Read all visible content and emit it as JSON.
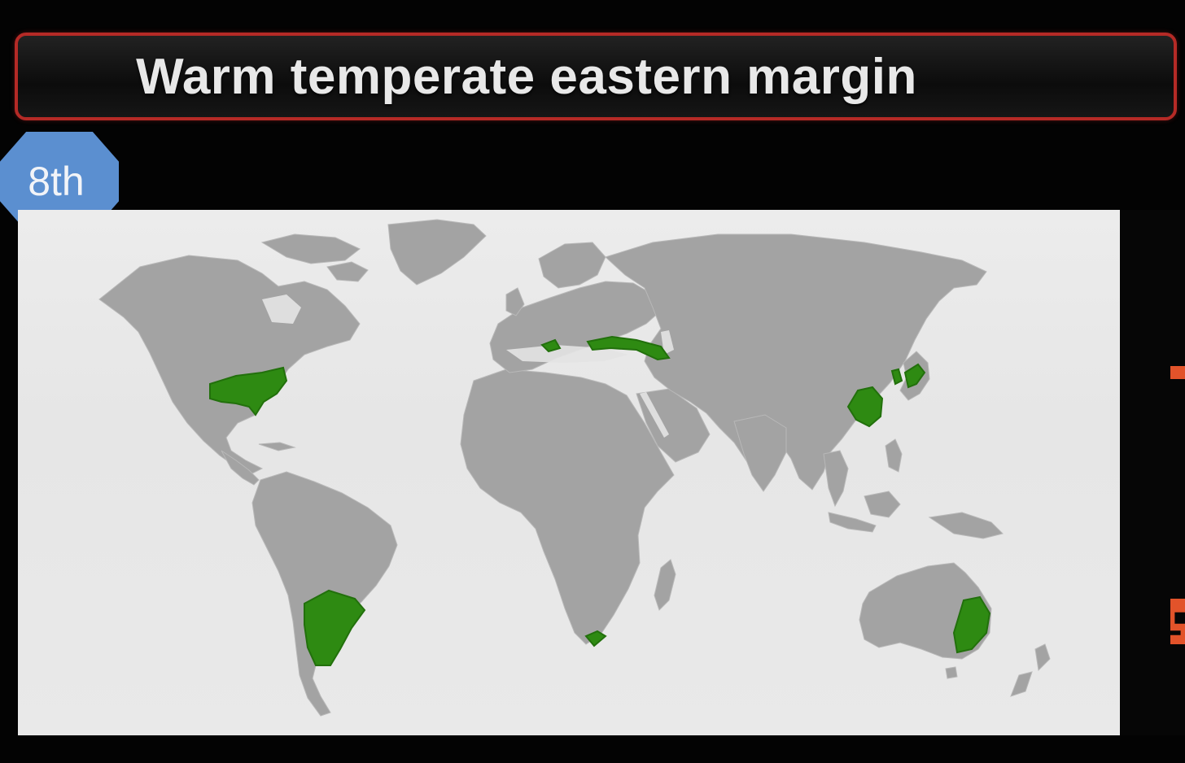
{
  "title": "Warm temperate eastern margin",
  "badge": "8th",
  "map": {
    "highlight_color": "#2e8a12",
    "land_color": "#a3a3a3",
    "ocean_color": "#e8e8e8",
    "highlighted_regions": [
      "southeastern-united-states",
      "southeastern-south-america",
      "southeast-africa",
      "eastern-china",
      "southern-japan",
      "eastern-australia",
      "black-sea-coast"
    ]
  },
  "colors": {
    "title_border": "#b52a26",
    "badge": "#5b8fd0",
    "edge_accent": "#e2532a"
  }
}
